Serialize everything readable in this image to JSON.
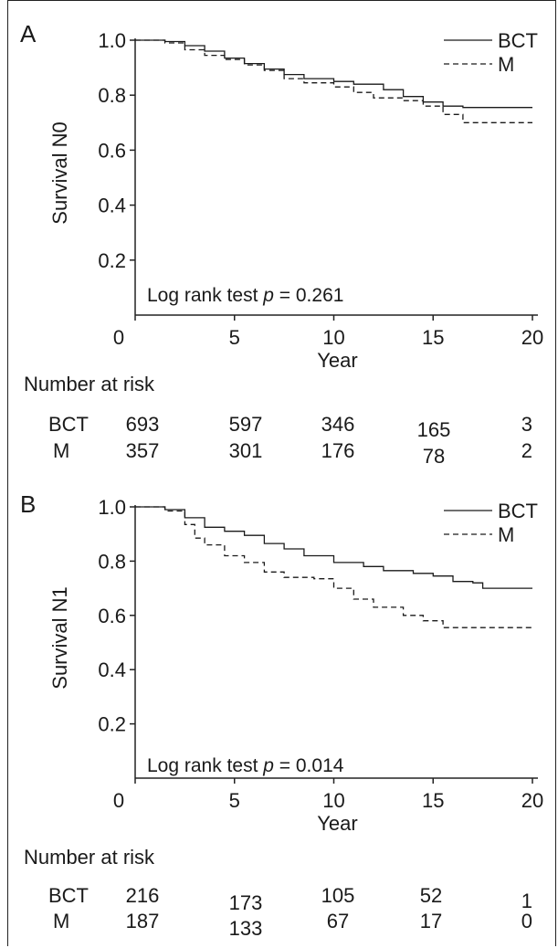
{
  "chart_data": [
    {
      "type": "line",
      "panel_label": "A",
      "ylabel": "Survival N0",
      "xlabel": "Year",
      "xlim": [
        0,
        20
      ],
      "ylim": [
        0,
        1.0
      ],
      "xticks": [
        "0",
        "5",
        "10",
        "15",
        "20"
      ],
      "yticks": [
        "0.2",
        "0.4",
        "0.6",
        "0.8",
        "1.0"
      ],
      "legend": {
        "position": "top-right"
      },
      "annotation": {
        "prefix": "Log rank test ",
        "p": "p",
        "suffix": " = 0.261"
      },
      "series": [
        {
          "name": "BCT",
          "style": "solid",
          "points": [
            [
              0,
              1.0
            ],
            [
              1.5,
              0.995
            ],
            [
              2.5,
              0.98
            ],
            [
              3.5,
              0.96
            ],
            [
              4.5,
              0.935
            ],
            [
              5.5,
              0.915
            ],
            [
              6.5,
              0.895
            ],
            [
              7.5,
              0.875
            ],
            [
              8.5,
              0.86
            ],
            [
              10,
              0.85
            ],
            [
              11,
              0.84
            ],
            [
              12.5,
              0.82
            ],
            [
              13.5,
              0.795
            ],
            [
              14.5,
              0.775
            ],
            [
              15.5,
              0.76
            ],
            [
              16.5,
              0.755
            ],
            [
              20,
              0.755
            ]
          ]
        },
        {
          "name": "M",
          "style": "dashed",
          "points": [
            [
              0,
              1.0
            ],
            [
              1.5,
              0.99
            ],
            [
              2.5,
              0.965
            ],
            [
              3.5,
              0.945
            ],
            [
              4.5,
              0.93
            ],
            [
              5.5,
              0.91
            ],
            [
              6.5,
              0.89
            ],
            [
              7.5,
              0.86
            ],
            [
              8.5,
              0.845
            ],
            [
              10,
              0.83
            ],
            [
              11,
              0.81
            ],
            [
              12,
              0.79
            ],
            [
              13.5,
              0.78
            ],
            [
              14.5,
              0.76
            ],
            [
              15.5,
              0.73
            ],
            [
              16.5,
              0.7
            ],
            [
              20,
              0.7
            ]
          ]
        }
      ],
      "risk_table": {
        "heading": "Number at risk",
        "rows": [
          {
            "label": "BCT",
            "values": [
              "693",
              "597",
              "346",
              "165",
              "3"
            ]
          },
          {
            "label": "M",
            "values": [
              "357",
              "301",
              "176",
              "78",
              "2"
            ]
          }
        ]
      }
    },
    {
      "type": "line",
      "panel_label": "B",
      "ylabel": "Survival N1",
      "xlabel": "Year",
      "xlim": [
        0,
        20
      ],
      "ylim": [
        0,
        1.0
      ],
      "xticks": [
        "0",
        "5",
        "10",
        "15",
        "20"
      ],
      "yticks": [
        "0.2",
        "0.4",
        "0.6",
        "0.8",
        "1.0"
      ],
      "legend": {
        "position": "top-right"
      },
      "annotation": {
        "prefix": "Log rank test ",
        "p": "p",
        "suffix": " = 0.014"
      },
      "series": [
        {
          "name": "BCT",
          "style": "solid",
          "points": [
            [
              0,
              1.0
            ],
            [
              1.5,
              0.99
            ],
            [
              2.5,
              0.96
            ],
            [
              3.5,
              0.925
            ],
            [
              4.5,
              0.91
            ],
            [
              5.5,
              0.895
            ],
            [
              6.5,
              0.865
            ],
            [
              7.5,
              0.845
            ],
            [
              8.5,
              0.82
            ],
            [
              10,
              0.795
            ],
            [
              11.5,
              0.78
            ],
            [
              12.5,
              0.765
            ],
            [
              14,
              0.755
            ],
            [
              15,
              0.745
            ],
            [
              16,
              0.725
            ],
            [
              17,
              0.72
            ],
            [
              17.5,
              0.7
            ],
            [
              20,
              0.7
            ]
          ]
        },
        {
          "name": "M",
          "style": "dashed",
          "points": [
            [
              0,
              1.0
            ],
            [
              1.5,
              0.985
            ],
            [
              2.5,
              0.935
            ],
            [
              3,
              0.885
            ],
            [
              3.5,
              0.86
            ],
            [
              4.5,
              0.82
            ],
            [
              5.5,
              0.795
            ],
            [
              6.5,
              0.76
            ],
            [
              7.5,
              0.74
            ],
            [
              9,
              0.735
            ],
            [
              10,
              0.7
            ],
            [
              11,
              0.66
            ],
            [
              12,
              0.63
            ],
            [
              13.5,
              0.6
            ],
            [
              14.5,
              0.58
            ],
            [
              15.5,
              0.555
            ],
            [
              20,
              0.555
            ]
          ]
        }
      ],
      "risk_table": {
        "heading": "Number at risk",
        "rows": [
          {
            "label": "BCT",
            "values": [
              "216",
              "173",
              "105",
              "52",
              "1"
            ]
          },
          {
            "label": "M",
            "values": [
              "187",
              "133",
              "67",
              "17",
              "0"
            ]
          }
        ]
      }
    }
  ]
}
